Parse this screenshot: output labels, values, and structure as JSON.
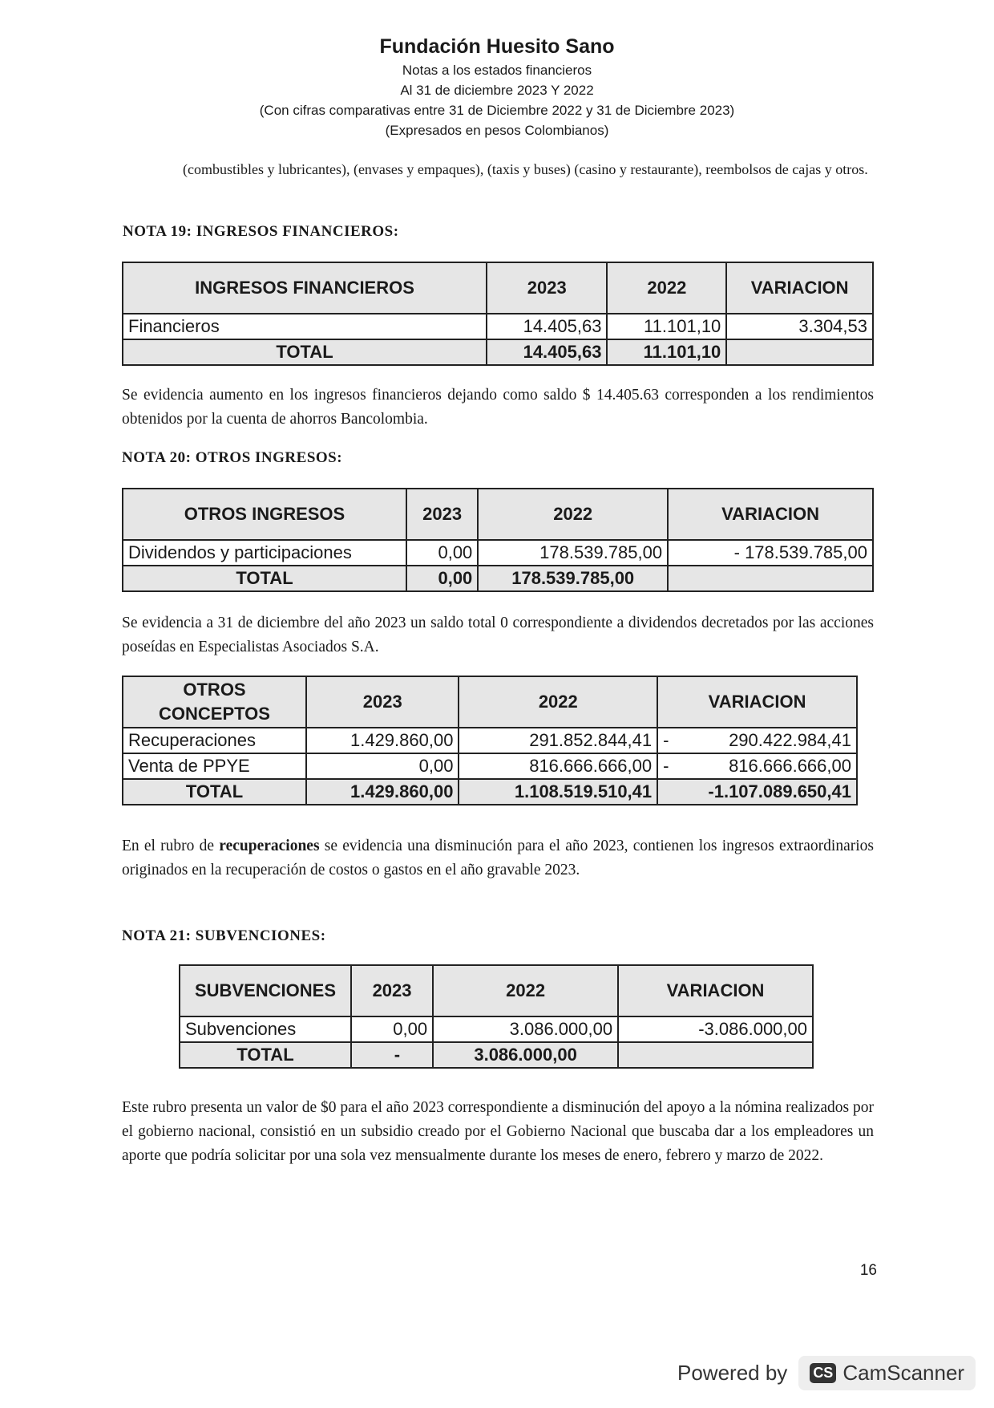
{
  "header": {
    "title": "Fundación Huesito Sano",
    "line1": "Notas a los estados financieros",
    "line2": "Al 31 de diciembre 2023 Y 2022",
    "line3": "(Con cifras comparativas entre 31 de Diciembre 2022 y 31 de Diciembre 2023)",
    "line4": "(Expresados en pesos Colombianos)"
  },
  "intro": "(combustibles y lubricantes), (envases y empaques), (taxis y buses) (casino y restaurante), reembolsos de cajas y otros.",
  "nota19": {
    "title": "NOTA 19: INGRESOS FINANCIEROS:",
    "table": {
      "headers": [
        "INGRESOS FINANCIEROS",
        "2023",
        "2022",
        "VARIACION"
      ],
      "rows": [
        [
          "Financieros",
          "14.405,63",
          "11.101,10",
          "3.304,53"
        ]
      ],
      "total": [
        "TOTAL",
        "14.405,63",
        "11.101,10",
        ""
      ]
    },
    "text": "Se evidencia aumento en los ingresos financieros dejando como saldo $ 14.405.63 corresponden a los rendimientos obtenidos por la cuenta de ahorros Bancolombia."
  },
  "nota20": {
    "title": "NOTA 20: OTROS INGRESOS:",
    "table": {
      "headers": [
        "OTROS INGRESOS",
        "2023",
        "2022",
        "VARIACION"
      ],
      "rows": [
        [
          "Dividendos y participaciones",
          "0,00",
          "178.539.785,00",
          "- 178.539.785,00"
        ]
      ],
      "total": [
        "TOTAL",
        "0,00",
        "178.539.785,00",
        ""
      ]
    },
    "text": "Se evidencia a 31 de diciembre del año 2023 un saldo total 0 correspondiente a dividendos decretados por las acciones poseídas en Especialistas Asociados S.A.",
    "table2": {
      "headers": [
        "OTROS CONCEPTOS",
        "2023",
        "2022",
        "VARIACION"
      ],
      "rows": [
        [
          "Recuperaciones",
          "1.429.860,00",
          "291.852.844,41",
          "-",
          "290.422.984,41"
        ],
        [
          "Venta de PPYE",
          "0,00",
          "816.666.666,00",
          "-",
          "816.666.666,00"
        ]
      ],
      "total": [
        "TOTAL",
        "1.429.860,00",
        "1.108.519.510,41",
        "-1.107.089.650,41"
      ]
    },
    "text2_pre": "En el rubro de ",
    "text2_bold": "recuperaciones",
    "text2_post": " se evidencia una disminución para el año 2023, contienen los ingresos extraordinarios originados en la recuperación de costos o gastos en el año gravable 2023."
  },
  "nota21": {
    "title": "NOTA 21: SUBVENCIONES:",
    "table": {
      "headers": [
        "SUBVENCIONES",
        "2023",
        "2022",
        "VARIACION"
      ],
      "rows": [
        [
          "Subvenciones",
          "0,00",
          "3.086.000,00",
          "-3.086.000,00"
        ]
      ],
      "total": [
        "TOTAL",
        "-",
        "3.086.000,00",
        ""
      ]
    },
    "text": "Este rubro presenta un valor de $0 para el año 2023 correspondiente a disminución del apoyo a la nómina realizados por el gobierno nacional, consistió en un subsidio creado por el Gobierno Nacional que buscaba dar a los empleadores un aporte que podría solicitar por una sola vez mensualmente durante los meses de enero, febrero y marzo de 2022."
  },
  "page_number": "16",
  "watermark": {
    "powered": "Powered by",
    "logo": "CS",
    "brand": "CamScanner"
  }
}
